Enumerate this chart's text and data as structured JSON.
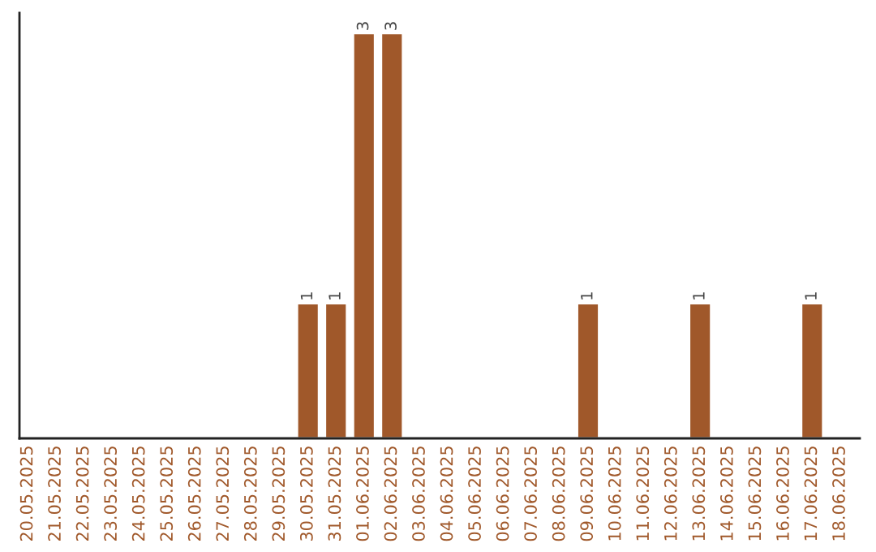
{
  "chart_data": {
    "type": "bar",
    "categories": [
      "20.05.2025",
      "21.05.2025",
      "22.05.2025",
      "23.05.2025",
      "24.05.2025",
      "25.05.2025",
      "26.05.2025",
      "27.05.2025",
      "28.05.2025",
      "29.05.2025",
      "30.05.2025",
      "31.05.2025",
      "01.06.2025",
      "02.06.2025",
      "03.06.2025",
      "04.06.2025",
      "05.06.2025",
      "06.06.2025",
      "07.06.2025",
      "08.06.2025",
      "09.06.2025",
      "10.06.2025",
      "11.06.2025",
      "12.06.2025",
      "13.06.2025",
      "14.06.2025",
      "15.06.2025",
      "16.06.2025",
      "17.06.2025",
      "18.06.2025"
    ],
    "values": [
      null,
      null,
      null,
      null,
      null,
      null,
      null,
      null,
      null,
      null,
      1,
      1,
      3,
      3,
      null,
      null,
      null,
      null,
      null,
      null,
      1,
      null,
      null,
      null,
      1,
      null,
      null,
      null,
      1,
      null
    ],
    "color": "#a0582a",
    "ylim": [
      0,
      3.15
    ],
    "tick_labels": "x",
    "data_labels": true,
    "grid": false,
    "legend": false
  }
}
